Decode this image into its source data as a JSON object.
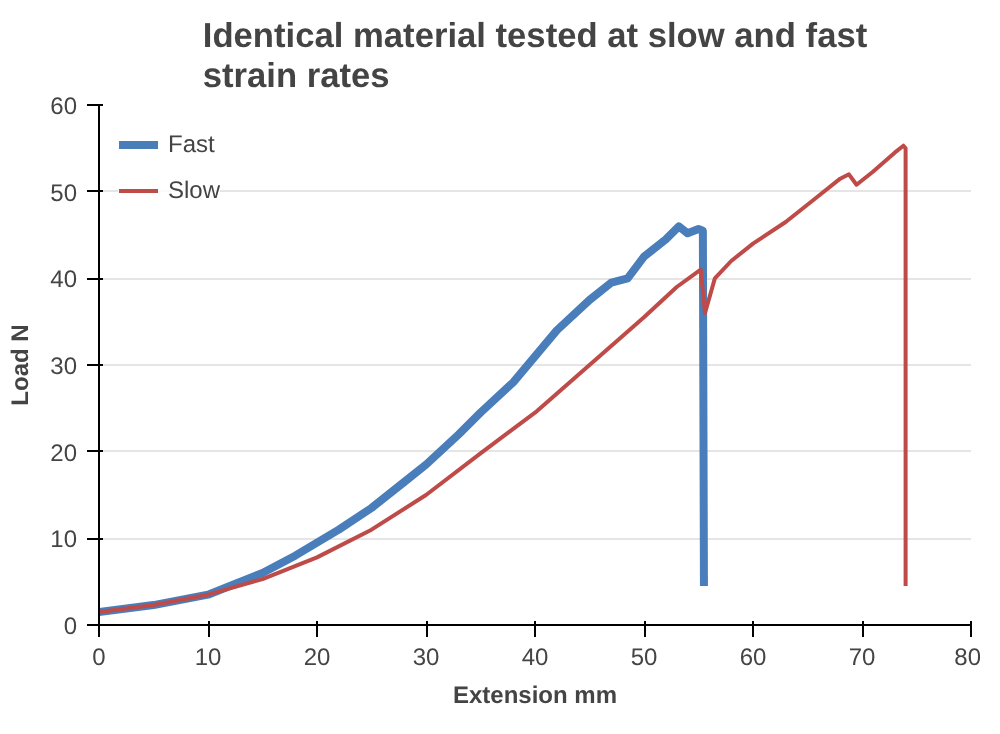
{
  "chart_data": {
    "type": "line",
    "title": "Identical material tested at slow and fast strain rates",
    "xlabel": "Extension mm",
    "ylabel": "Load N",
    "xlim": [
      0,
      80
    ],
    "ylim": [
      0,
      60
    ],
    "xticks": [
      0,
      10,
      20,
      30,
      40,
      50,
      60,
      70,
      80
    ],
    "yticks": [
      0,
      10,
      20,
      30,
      40,
      50,
      60
    ],
    "grid": "y",
    "legend": "top left",
    "marker": "none",
    "series": [
      {
        "name": "Fast",
        "color": "#4a7ebb",
        "x": [
          0,
          5,
          10,
          12,
          15,
          18,
          20,
          22,
          25,
          28,
          30,
          33,
          35,
          38,
          40,
          42,
          45,
          47,
          48.5,
          50,
          52,
          53.2,
          54,
          55,
          55.4,
          55.5
        ],
        "values": [
          1.5,
          2.3,
          3.5,
          4.5,
          6,
          8,
          9.5,
          11,
          13.5,
          16.5,
          18.5,
          22,
          24.5,
          28,
          31,
          34,
          37.5,
          39.5,
          40,
          42.5,
          44.5,
          46,
          45.2,
          45.7,
          45.5,
          4.5
        ]
      },
      {
        "name": "Slow",
        "color": "#be4b48",
        "x": [
          0,
          5,
          10,
          15,
          20,
          25,
          30,
          35,
          40,
          45,
          50,
          53,
          55.2,
          55.6,
          56.5,
          58,
          60,
          63,
          66,
          68,
          68.8,
          69.5,
          71,
          73,
          73.8,
          74,
          74
        ],
        "values": [
          1.5,
          2.3,
          3.5,
          5.3,
          7.8,
          11,
          15,
          19.8,
          24.5,
          30,
          35.5,
          39,
          41,
          36,
          40,
          42,
          44,
          46.5,
          49.5,
          51.5,
          52,
          50.8,
          52.3,
          54.5,
          55.3,
          55,
          4.5
        ]
      }
    ]
  }
}
